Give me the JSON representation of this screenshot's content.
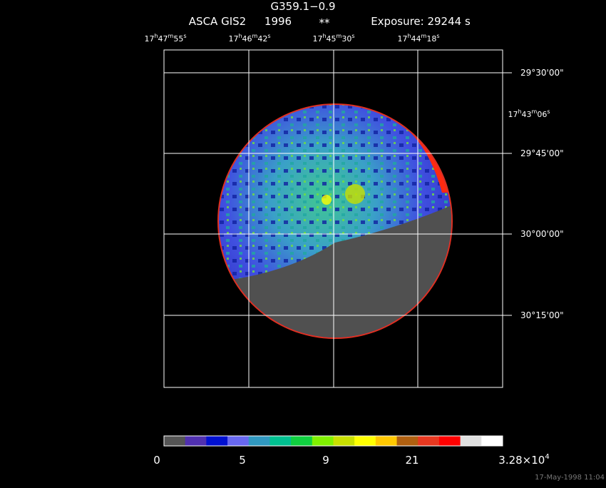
{
  "header": {
    "title": "G359.1−0.9",
    "instrument": "ASCA GIS2",
    "year": "1996",
    "marker": "**",
    "exposure": "Exposure: 29244 s"
  },
  "ra_labels": [
    [
      "17",
      "h",
      "47",
      "m",
      "55",
      "s"
    ],
    [
      "17",
      "h",
      "46",
      "m",
      "42",
      "s"
    ],
    [
      "17",
      "h",
      "45",
      "m",
      "30",
      "s"
    ],
    [
      "17",
      "h",
      "44",
      "m",
      "18",
      "s"
    ]
  ],
  "ra_label_right": [
    "17",
    "h",
    "43",
    "m",
    "06",
    "s"
  ],
  "dec_labels": [
    "29°30'00\"",
    "29°45'00\"",
    "30°00'00\"",
    "30°15'00\""
  ],
  "colorbar": {
    "colors": [
      "#555555",
      "#5030b0",
      "#0010d0",
      "#6868f0",
      "#3098c0",
      "#00c090",
      "#10d040",
      "#80f000",
      "#c8e000",
      "#ffff00",
      "#ffc800",
      "#b06010",
      "#e83820",
      "#ff0000",
      "#e0e0e0",
      "#ffffff"
    ],
    "labels": [
      [
        "0"
      ],
      [
        "5"
      ],
      [
        "9"
      ],
      [
        "21"
      ],
      [
        "3.28×10",
        "4"
      ]
    ]
  },
  "timestamp": "17-May-1998 11:04"
}
